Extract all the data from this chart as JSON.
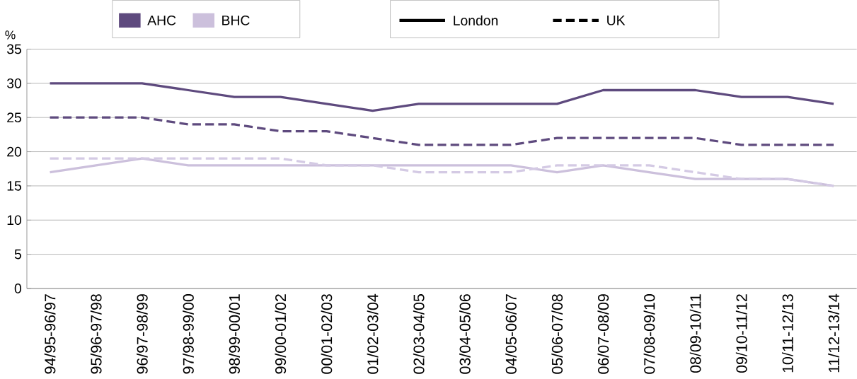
{
  "chart_data": {
    "type": "line",
    "ylabel": "%",
    "categories": [
      "94/95-96/97",
      "95/96-97/98",
      "96/97-98/99",
      "97/98-99/00",
      "98/99-00/01",
      "99/00-01/02",
      "00/01-02/03",
      "01/02-03/04",
      "02/03-04/05",
      "03/04-05/06",
      "04/05-06/07",
      "05/06-07/08",
      "06/07-08/09",
      "07/08-09/10",
      "08/09-10/11",
      "09/10-11/12",
      "10/11-12/13",
      "11/12-13/14"
    ],
    "series": [
      {
        "color": "#5e4a7e",
        "line_style": "solid",
        "values": [
          30,
          30,
          30,
          29,
          28,
          28,
          27,
          26,
          27,
          27,
          27,
          27,
          29,
          29,
          29,
          28,
          28,
          27
        ]
      },
      {
        "color": "#5e4a7e",
        "line_style": "dashed",
        "values": [
          25,
          25,
          25,
          24,
          24,
          23,
          23,
          22,
          21,
          21,
          21,
          22,
          22,
          22,
          22,
          21,
          21,
          21
        ]
      },
      {
        "color": "#ccc0dc",
        "line_style": "solid",
        "values": [
          17,
          18,
          19,
          18,
          18,
          18,
          18,
          18,
          18,
          18,
          18,
          17,
          18,
          17,
          16,
          16,
          16,
          15
        ]
      },
      {
        "color": "#d4cae4",
        "line_style": "dashed",
        "values": [
          19,
          19,
          19,
          19,
          19,
          19,
          18,
          18,
          17,
          17,
          17,
          18,
          18,
          18,
          17,
          16,
          16,
          15
        ]
      }
    ],
    "annotations": [
      "AHC",
      "BHC",
      "London",
      "UK"
    ],
    "ylim": [
      0,
      35
    ],
    "yticks": [
      0,
      5,
      10,
      15,
      20,
      25,
      30,
      35
    ],
    "grid": "y"
  }
}
